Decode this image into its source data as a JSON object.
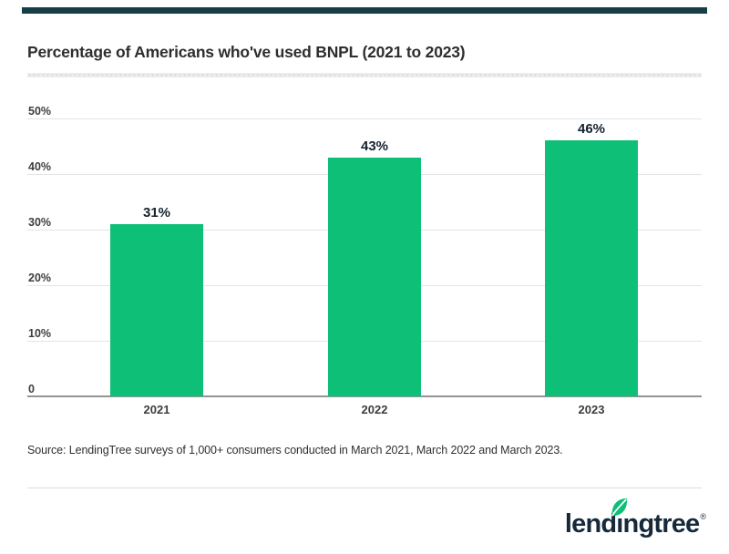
{
  "header": {
    "accent_color": "#163e48"
  },
  "chart_data": {
    "type": "bar",
    "title": "Percentage of Americans who've used BNPL (2021 to 2023)",
    "categories": [
      "2021",
      "2022",
      "2023"
    ],
    "values": [
      31,
      43,
      46
    ],
    "value_labels": [
      "31%",
      "43%",
      "46%"
    ],
    "yticks": [
      {
        "value": 0,
        "label": "0"
      },
      {
        "value": 10,
        "label": "10%"
      },
      {
        "value": 20,
        "label": "20%"
      },
      {
        "value": 30,
        "label": "30%"
      },
      {
        "value": 40,
        "label": "40%"
      },
      {
        "value": 50,
        "label": "50%"
      }
    ],
    "ylim": [
      0,
      50
    ],
    "xlabel": "",
    "ylabel": "",
    "grid": true,
    "legend": false,
    "bar_color": "#0dbf77"
  },
  "source": {
    "text": "Source: LendingTree surveys of 1,000+ consumers conducted in March 2021, March 2022 and March 2023."
  },
  "footer": {
    "brand": "lendingtree",
    "trademark": "®",
    "logo_navy": "#16293a",
    "leaf_green": "#0dbf77"
  }
}
